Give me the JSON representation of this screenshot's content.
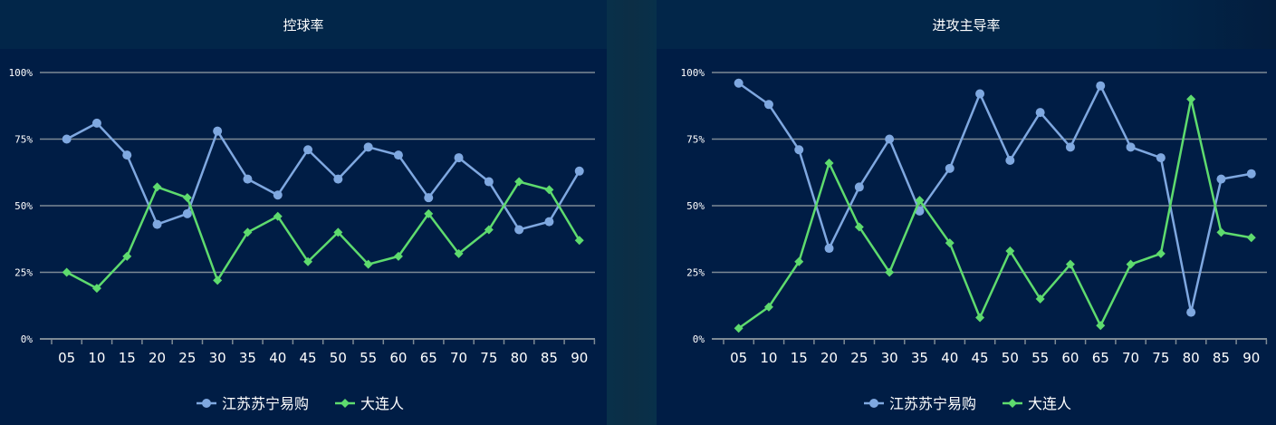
{
  "charts": [
    {
      "id": "possession",
      "title": "控球率"
    },
    {
      "id": "attack",
      "title": "进攻主导率"
    }
  ],
  "colors": {
    "series1": "#7fa8e0",
    "series2": "#5edb6e",
    "grid": "#7d8a95",
    "axis_text": "#ffffff"
  },
  "chart_data": [
    {
      "type": "line",
      "title": "控球率",
      "categories": [
        "05",
        "10",
        "15",
        "20",
        "25",
        "30",
        "35",
        "40",
        "45",
        "50",
        "55",
        "60",
        "65",
        "70",
        "75",
        "80",
        "85",
        "90"
      ],
      "y_ticks": [
        "0%",
        "25%",
        "50%",
        "75%",
        "100%"
      ],
      "ylim": [
        0,
        100
      ],
      "grid": true,
      "legend_position": "bottom-center",
      "series": [
        {
          "name": "江苏苏宁易购",
          "marker": "circle",
          "values": [
            75,
            81,
            69,
            43,
            47,
            78,
            60,
            54,
            71,
            60,
            72,
            69,
            53,
            68,
            59,
            41,
            44,
            63
          ]
        },
        {
          "name": "大连人",
          "marker": "diamond",
          "values": [
            25,
            19,
            31,
            57,
            53,
            22,
            40,
            46,
            29,
            40,
            28,
            31,
            47,
            32,
            41,
            59,
            56,
            37
          ]
        }
      ]
    },
    {
      "type": "line",
      "title": "进攻主导率",
      "categories": [
        "05",
        "10",
        "15",
        "20",
        "25",
        "30",
        "35",
        "40",
        "45",
        "50",
        "55",
        "60",
        "65",
        "70",
        "75",
        "80",
        "85",
        "90"
      ],
      "y_ticks": [
        "0%",
        "25%",
        "50%",
        "75%",
        "100%"
      ],
      "ylim": [
        0,
        100
      ],
      "grid": true,
      "legend_position": "bottom-center",
      "series": [
        {
          "name": "江苏苏宁易购",
          "marker": "circle",
          "values": [
            96,
            88,
            71,
            34,
            57,
            75,
            48,
            64,
            92,
            67,
            85,
            72,
            95,
            72,
            68,
            10,
            60,
            62
          ]
        },
        {
          "name": "大连人",
          "marker": "diamond",
          "values": [
            4,
            12,
            29,
            66,
            42,
            25,
            52,
            36,
            8,
            33,
            15,
            28,
            5,
            28,
            32,
            90,
            40,
            38
          ]
        }
      ]
    }
  ]
}
